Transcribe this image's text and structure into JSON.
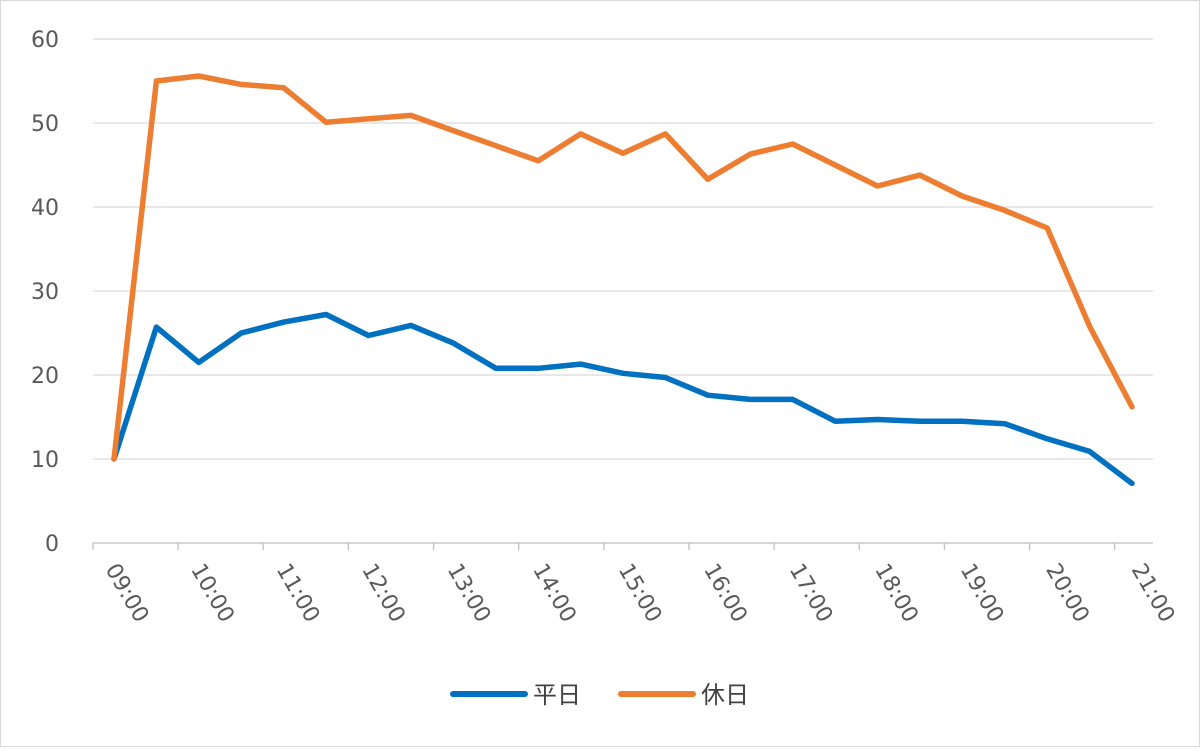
{
  "chart_data": {
    "type": "line",
    "title": "",
    "xlabel": "",
    "ylabel": "",
    "ylim": [
      0,
      60
    ],
    "yticks": [
      0,
      10,
      20,
      30,
      40,
      50,
      60
    ],
    "xtick_labels": [
      "09:00",
      "10:00",
      "11:00",
      "12:00",
      "13:00",
      "14:00",
      "15:00",
      "16:00",
      "17:00",
      "18:00",
      "19:00",
      "20:00",
      "21:00"
    ],
    "grid": true,
    "legend_position": "bottom",
    "x": [
      "09:00",
      "09:30",
      "10:00",
      "10:30",
      "11:00",
      "11:30",
      "12:00",
      "12:30",
      "13:00",
      "13:30",
      "14:00",
      "14:30",
      "15:00",
      "15:30",
      "16:00",
      "16:30",
      "17:00",
      "17:30",
      "18:00",
      "18:30",
      "19:00",
      "19:30",
      "20:00",
      "20:30",
      "21:00"
    ],
    "series": [
      {
        "name": "平日",
        "color": "#0070C0",
        "values": [
          10,
          25.7,
          21.5,
          25,
          26.3,
          27.2,
          24.7,
          25.9,
          23.8,
          20.8,
          20.8,
          21.3,
          20.2,
          19.7,
          17.6,
          17.1,
          17.1,
          14.5,
          14.7,
          14.5,
          14.5,
          14.2,
          12.4,
          10.9,
          7.1
        ]
      },
      {
        "name": "休日",
        "color": "#ED7D31",
        "values": [
          10,
          55,
          55.6,
          54.6,
          54.2,
          50.1,
          50.5,
          50.9,
          49.1,
          47.3,
          45.5,
          48.7,
          46.4,
          48.7,
          43.3,
          46.3,
          47.5,
          45,
          42.5,
          43.8,
          41.3,
          39.6,
          37.5,
          25.8,
          16.2
        ]
      }
    ]
  }
}
